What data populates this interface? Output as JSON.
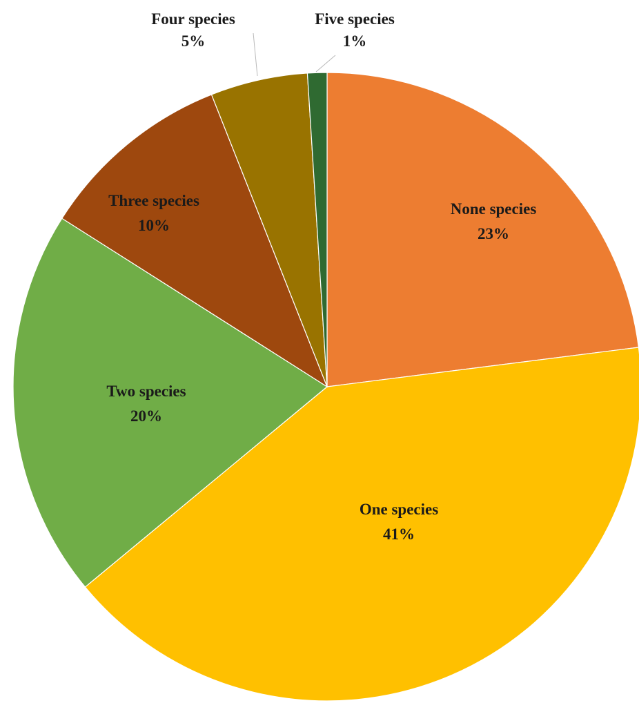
{
  "chart_data": {
    "type": "pie",
    "title": "",
    "start_angle_deg": 0,
    "direction": "clockwise",
    "slices": [
      {
        "name": "None species",
        "percent_label": "23%",
        "value": 23,
        "color": "#ED7D31"
      },
      {
        "name": "One species",
        "percent_label": "41%",
        "value": 41,
        "color": "#FFC000"
      },
      {
        "name": "Two species",
        "percent_label": "20%",
        "value": 20,
        "color": "#70AD47"
      },
      {
        "name": "Three species",
        "percent_label": "10%",
        "value": 10,
        "color": "#9E480E"
      },
      {
        "name": "Four species",
        "percent_label": "5%",
        "value": 5,
        "color": "#997300"
      },
      {
        "name": "Five species",
        "percent_label": "1%",
        "value": 1,
        "color": "#2F6A31"
      }
    ]
  }
}
